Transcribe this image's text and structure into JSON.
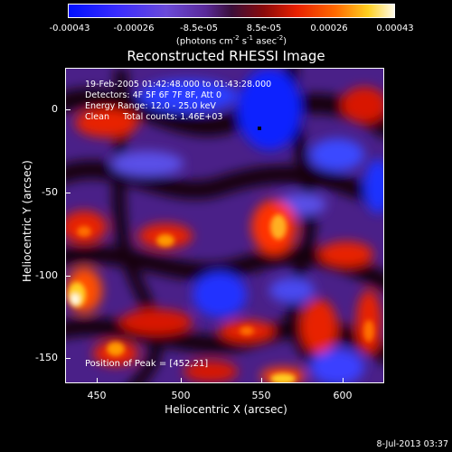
{
  "colorbar": {
    "ticks": [
      "-0.00043",
      "-0.00026",
      "-8.5e-05",
      "8.5e-05",
      "0.00026",
      "0.00043"
    ],
    "units_pre": "(photons cm",
    "units_sup1": "-2",
    "units_mid": " s",
    "units_sup2": "-1",
    "units_mid2": " asec",
    "units_sup3": "-2",
    "units_post": ")"
  },
  "title": "Reconstructed RHESSI Image",
  "info": {
    "time_range": "19-Feb-2005 01:42:48.000 to 01:43:28.000",
    "detectors": "Detectors: 4F 5F 6F 7F 8F, Att 0",
    "energy": "Energy Range: 12.0 - 25.0 keV",
    "method": "Clean     Total counts: 1.46E+03"
  },
  "peak": "Position of Peak = [452,21]",
  "axes": {
    "xlabel": "Heliocentric X (arcsec)",
    "ylabel": "Heliocentric Y (arcsec)",
    "xticks": [
      "450",
      "500",
      "550",
      "600"
    ],
    "yticks": [
      "0",
      "-50",
      "-100",
      "-150"
    ]
  },
  "timestamp": "8-Jul-2013 03:37",
  "colors": {
    "neg_strong": "#1020ff",
    "neg": "#6a4ad8",
    "neutral": "#5a2a9a",
    "dark": "#1a0010",
    "pos": "#e82000",
    "pos_strong": "#ffd020",
    "peak": "#fffbe8"
  }
}
